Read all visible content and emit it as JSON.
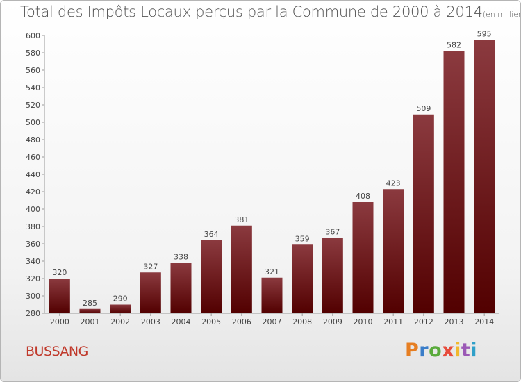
{
  "chart_data": {
    "type": "bar",
    "title": "Total des Impôts Locaux perçus par la Commune de 2000 à 2014",
    "unit_label": "(en milliers d'€)",
    "categories": [
      "2000",
      "2001",
      "2002",
      "2003",
      "2004",
      "2005",
      "2006",
      "2007",
      "2008",
      "2009",
      "2010",
      "2011",
      "2012",
      "2013",
      "2014"
    ],
    "values": [
      320,
      285,
      290,
      327,
      338,
      364,
      381,
      321,
      359,
      367,
      408,
      423,
      509,
      582,
      595
    ],
    "ylim": [
      280,
      600
    ],
    "yticks": [
      280,
      300,
      320,
      340,
      360,
      380,
      400,
      420,
      440,
      460,
      480,
      500,
      520,
      540,
      560,
      580,
      600
    ],
    "xlabel": "",
    "ylabel": "",
    "bar_color_top": "#8b3a3f",
    "bar_color_bottom": "#520000"
  },
  "commune": "BUSSANG",
  "brand": {
    "letters": [
      "P",
      "r",
      "o",
      "x",
      "i",
      "t",
      "i"
    ]
  }
}
